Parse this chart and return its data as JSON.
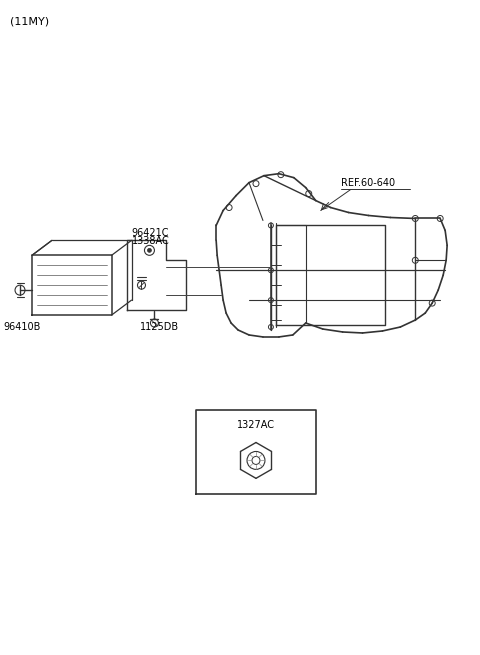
{
  "title": "(11MY)",
  "bg_color": "#ffffff",
  "line_color": "#333333",
  "text_color": "#000000",
  "labels": {
    "ref": "REF.60-640",
    "part1": "96421C",
    "part2": "1338AC",
    "part3": "96410B",
    "part4": "1125DB",
    "part5": "1327AC"
  },
  "figsize": [
    4.8,
    6.55
  ],
  "dpi": 100
}
